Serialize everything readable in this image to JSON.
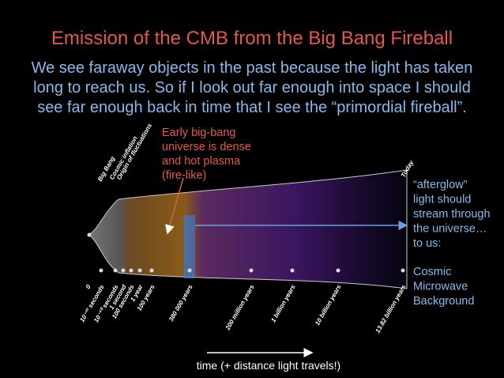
{
  "title": "Emission of the CMB from the Big Bang Fireball",
  "intro": [
    "We see faraway objects in the past because the light has taken",
    "long to reach us. So if I look out far enough into space I should",
    "see far enough back in time that I see the “primordial fireball”."
  ],
  "annotation": [
    "Early big-bang",
    "universe is dense",
    "and hot plasma",
    "(fire-like)"
  ],
  "afterglow": [
    "“afterglow”",
    "light should",
    "stream through",
    "the universe…",
    "to us:"
  ],
  "cmb": [
    "Cosmic",
    "Microwave",
    "Background"
  ],
  "timeline": {
    "top_labels": [
      "Big Bang",
      "Cosmic inflation",
      "Origin of fluctuations",
      "Today"
    ],
    "bottom_labels": [
      "0",
      "10⁻³² seconds",
      "10⁻³⁰ seconds",
      "1 second",
      "100 seconds",
      "1 year",
      "100 years",
      "380 000 years",
      "200 million years",
      "1 billion years",
      "10 billion years",
      "13.82 billion years"
    ]
  },
  "footer": "time (+ distance light travels!)"
}
